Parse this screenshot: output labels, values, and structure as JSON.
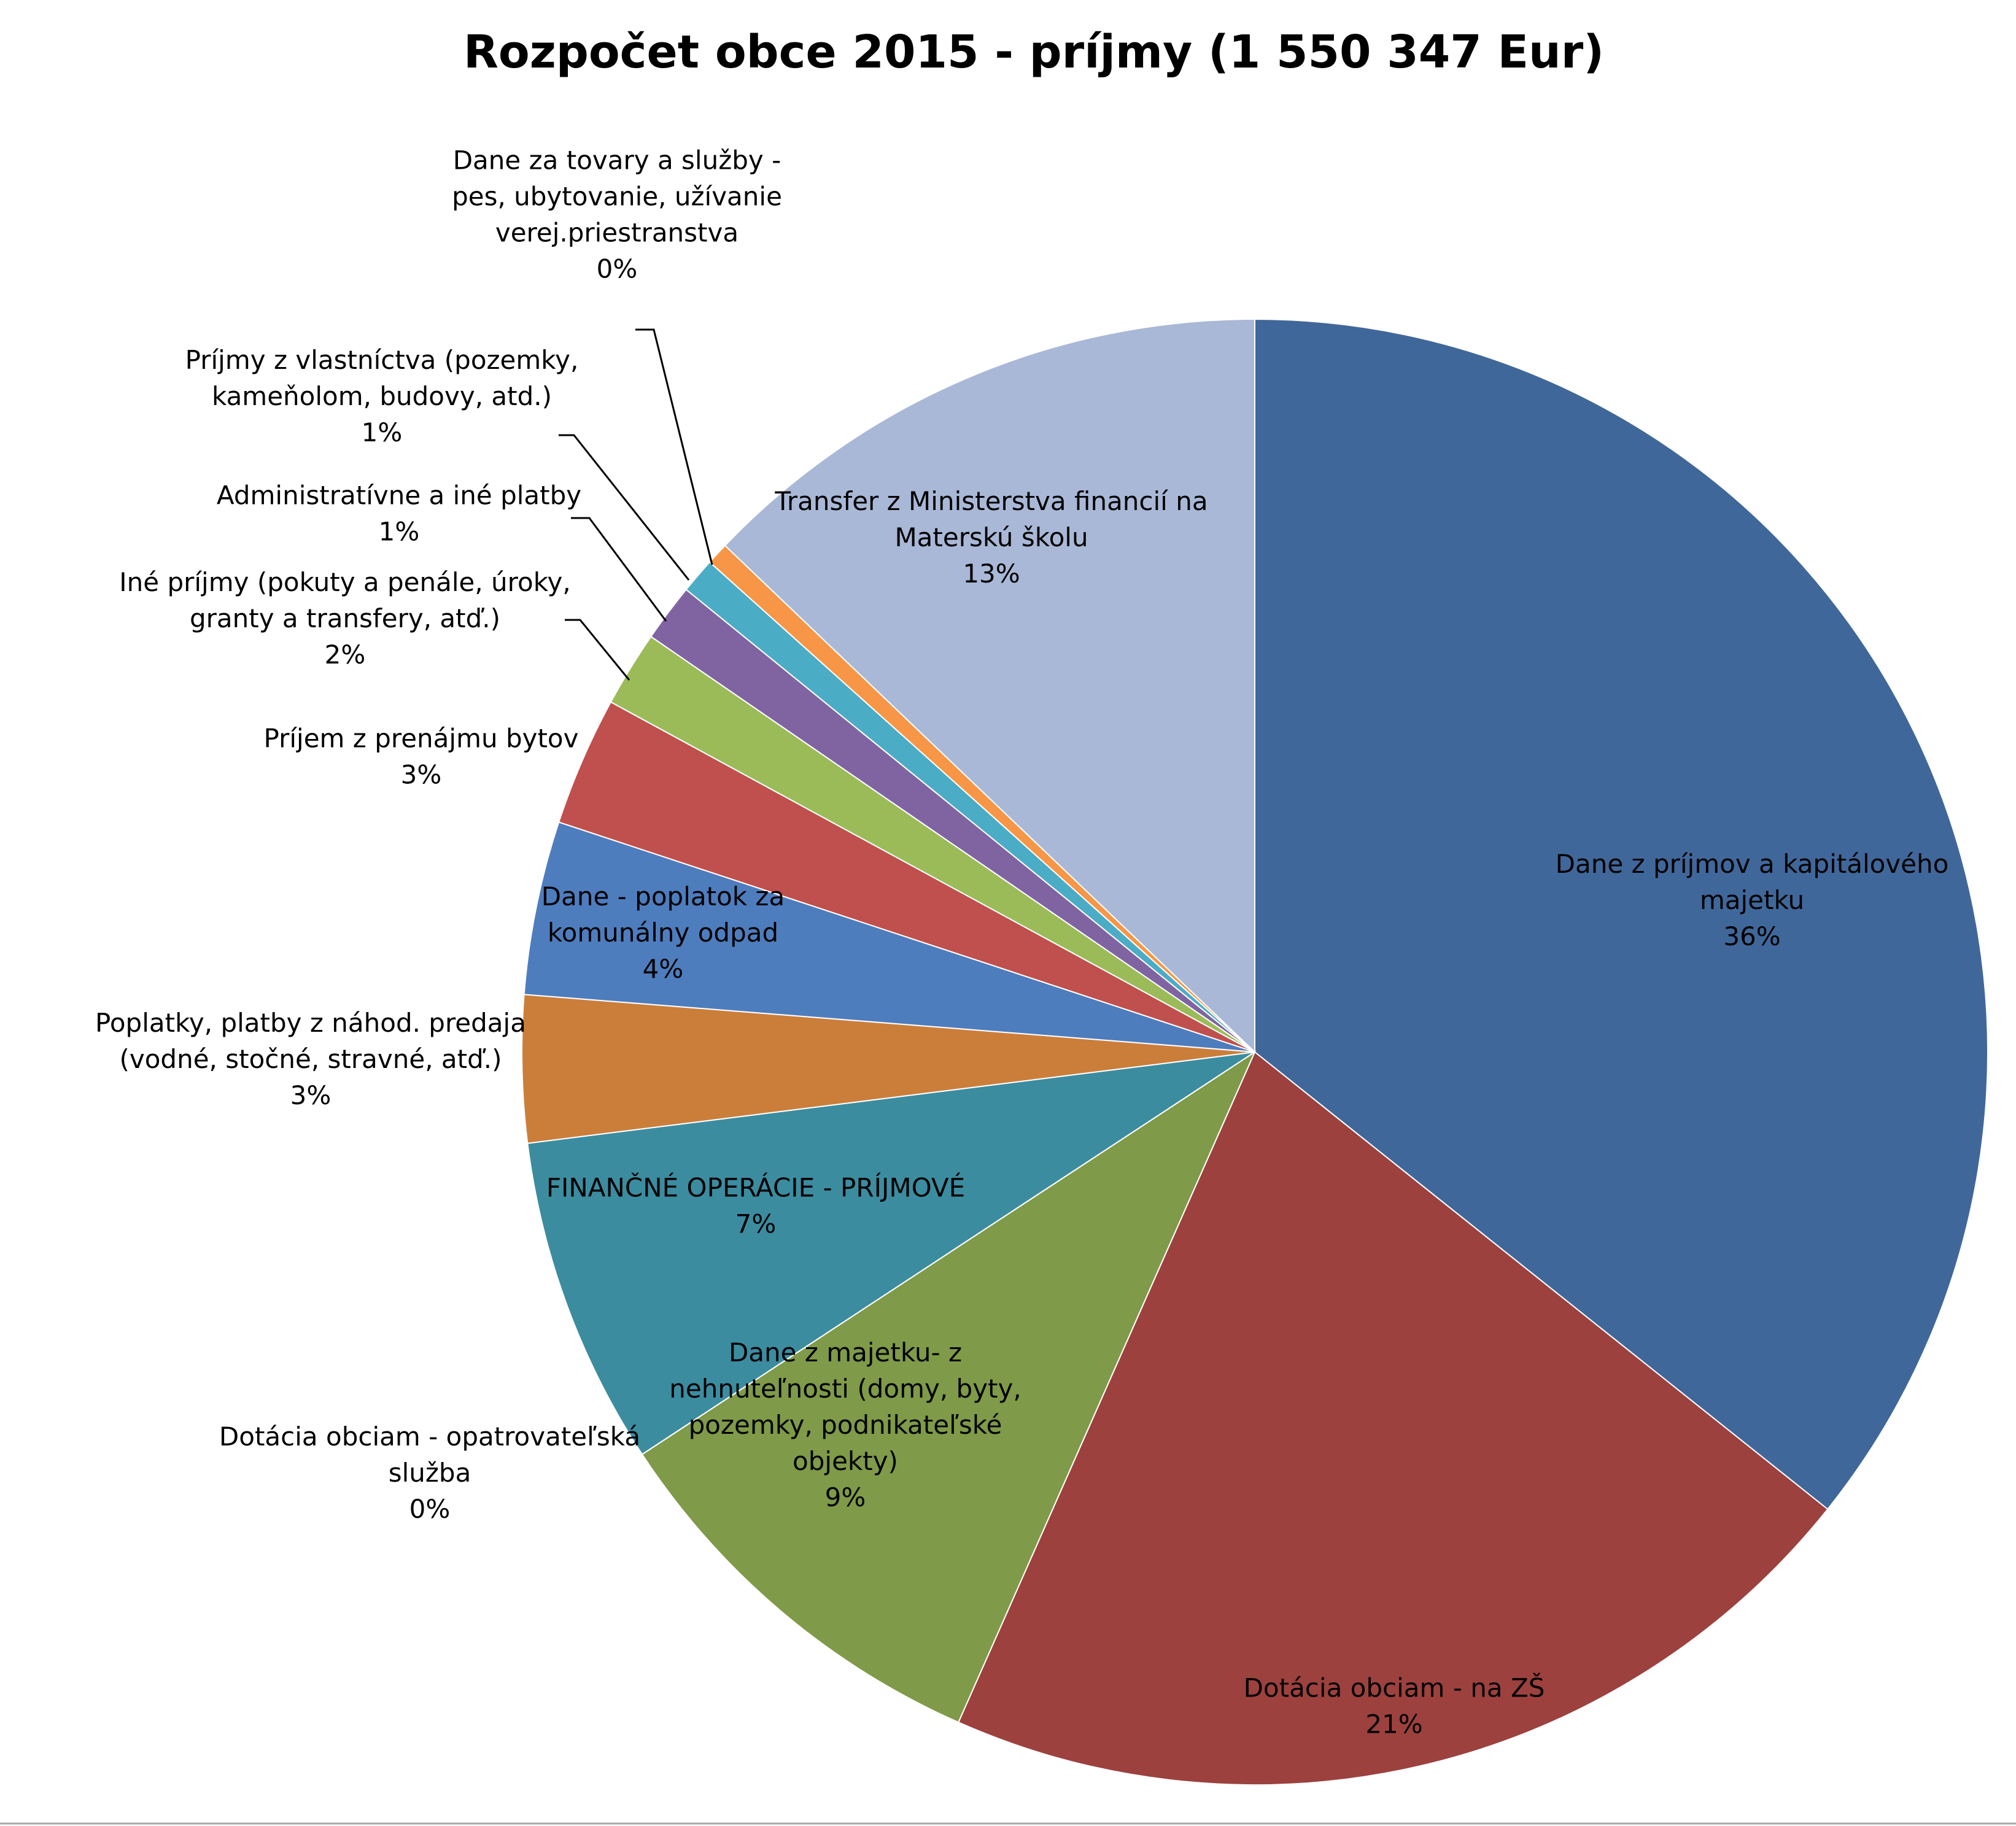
{
  "chart_data": {
    "type": "pie",
    "title": "Rozpočet obce 2015 - príjmy (1 550 347 Eur)",
    "start_angle_deg": 0,
    "direction": "clockwise",
    "slices": [
      {
        "name": "Dane z príjmov  a kapitálového majetku",
        "lines": [
          "Dane z príjmov  a kapitálového",
          "majetku",
          "36%"
        ],
        "percent_label": "36%",
        "value": 36.4,
        "color": "#40679A"
      },
      {
        "name": "Dotácia obciam - na ZŠ",
        "lines": [
          "Dotácia obciam - na ZŠ",
          "21%"
        ],
        "percent_label": "21%",
        "value": 21.3,
        "color": "#9C413E"
      },
      {
        "name": "Dane z majetku- z nehnuteľnosti (domy, byty, pozemky, podnikateľské objekty)",
        "lines": [
          "Dane z majetku- z",
          "nehnuteľnosti (domy, byty,",
          "pozemky, podnikateľské",
          "objekty)",
          "9%"
        ],
        "percent_label": "9%",
        "value": 9.3,
        "color": "#7F9A48"
      },
      {
        "name": "Dotácia obciam - opatrovateľská služba",
        "lines": [
          "Dotácia obciam - opatrovateľská",
          "služba",
          "0%"
        ],
        "percent_label": "0%",
        "value": 0.0,
        "color": "#6A528A"
      },
      {
        "name": "FINANČNÉ OPERÁCIE - PRÍJMOVÉ",
        "lines": [
          "FINANČNÉ OPERÁCIE - PRÍJMOVÉ",
          "7%"
        ],
        "percent_label": "7%",
        "value": 7.4,
        "color": "#3C8CA0"
      },
      {
        "name": "Poplatky, platby z náhod. predaja (vodné, stočné, stravné, atď.)",
        "lines": [
          "Poplatky, platby z náhod. predaja",
          "(vodné, stočné, stravné, atď.)",
          "3%"
        ],
        "percent_label": "3%",
        "value": 3.3,
        "color": "#CB7E3A"
      },
      {
        "name": "Dane - poplatok za komunálny odpad",
        "lines": [
          "Dane - poplatok za",
          "komunálny odpad",
          "4%"
        ],
        "percent_label": "4%",
        "value": 3.9,
        "color": "#4E7DBE"
      },
      {
        "name": "Príjem z prenájmu bytov",
        "lines": [
          "Príjem z prenájmu bytov",
          "3%"
        ],
        "percent_label": "3%",
        "value": 2.9,
        "color": "#C0504D"
      },
      {
        "name": "Iné príjmy (pokuty a penále, úroky, granty a transfery, atď.)",
        "lines": [
          "Iné príjmy (pokuty a penále, úroky,",
          "granty a transfery, atď.)",
          "2%"
        ],
        "percent_label": "2%",
        "value": 1.7,
        "color": "#9BBB59"
      },
      {
        "name": "Administratívne a iné platby",
        "lines": [
          "Administratívne a iné platby",
          "1%"
        ],
        "percent_label": "1%",
        "value": 1.3,
        "color": "#8064A2"
      },
      {
        "name": "Príjmy z vlastníctva (pozemky, kameňolom, budovy, atd.)",
        "lines": [
          "Príjmy z vlastníctva (pozemky,",
          "kameňolom, budovy, atd.)",
          "1%"
        ],
        "percent_label": "1%",
        "value": 0.8,
        "color": "#4BACC6"
      },
      {
        "name": "Dane za tovary a služby - pes, ubytovanie, užívanie verej.priestranstva",
        "lines": [
          "Dane za tovary a služby -",
          "pes, ubytovanie, užívanie",
          "verej.priestranstva",
          "0%"
        ],
        "percent_label": "0%",
        "value": 0.5,
        "color": "#F79646"
      },
      {
        "name": "Transfer z Ministerstva financií na Materskú školu",
        "lines": [
          "Transfer z Ministerstva financií na",
          "Materskú školu",
          "13%"
        ],
        "percent_label": "13%",
        "value": 13.1,
        "color": "#A9B8D6"
      }
    ]
  }
}
